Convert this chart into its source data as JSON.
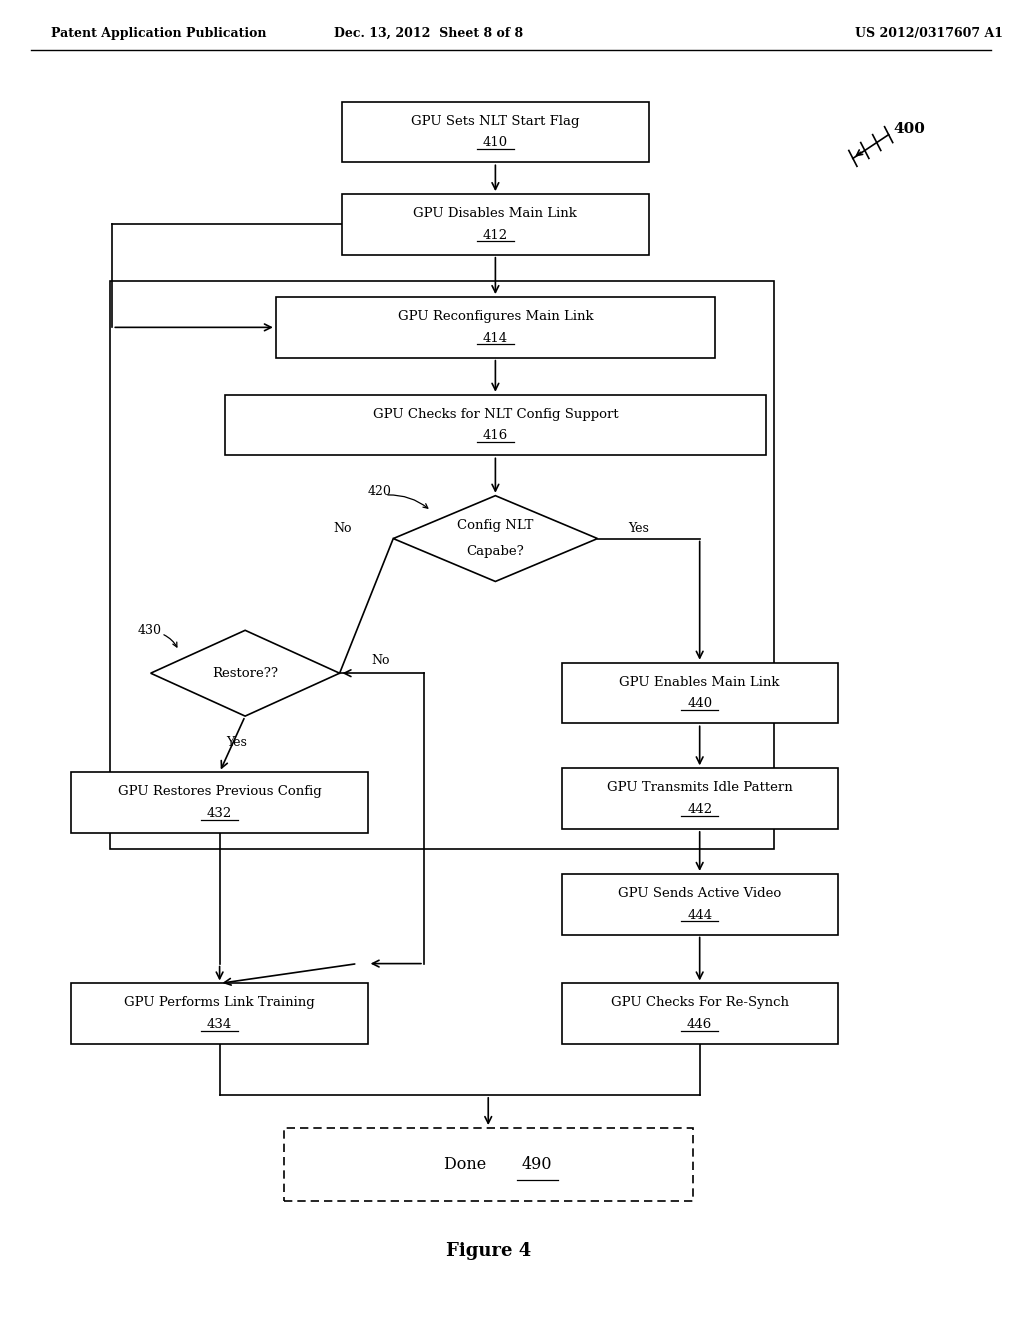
{
  "bg_color": "#ffffff",
  "header_left": "Patent Application Publication",
  "header_mid": "Dec. 13, 2012  Sheet 8 of 8",
  "header_right": "US 2012/0317607 A1",
  "figure_label": "Figure 4",
  "ref_number": "400",
  "text_fontsize": 9.5,
  "header_fontsize": 9,
  "figure_fontsize": 13
}
